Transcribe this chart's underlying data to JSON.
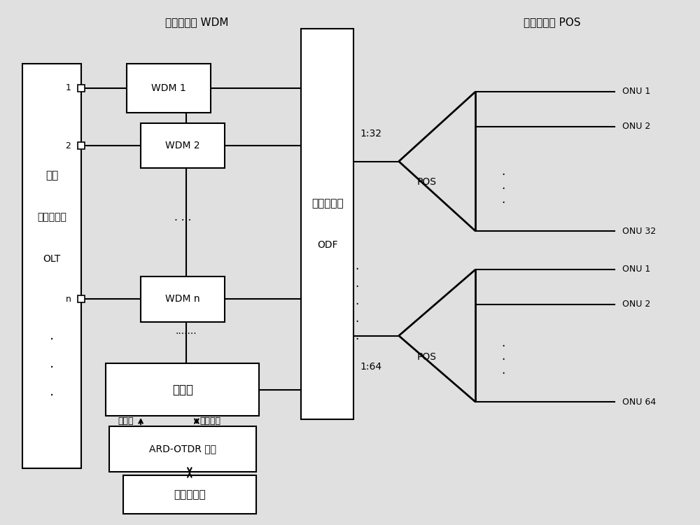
{
  "bg_color": "#e0e0e0",
  "line_color": "#000000",
  "box_color": "#ffffff",
  "title_label": "无源分光器 POS",
  "wdm_label": "波分复用器 WDM",
  "olt_label1": "局端",
  "olt_label2": "光线路终端",
  "olt_label3": "OLT",
  "odf_label1": "光纤配线架",
  "odf_label2": "ODF",
  "wdm1_label": "WDM 1",
  "wdm2_label": "WDM 2",
  "wdmn_label": "WDM n",
  "optical_switch_label": "光开关",
  "control_port_label": "控制口",
  "fiber_port_label": "光纤接口",
  "otdr_label": "ARD-OTDR 设备",
  "test_server_label": "测试服务器",
  "pos1_ratio": "1:32",
  "pos2_ratio": "1:64",
  "pos_label": "POS",
  "onu_labels_top": [
    "ONU 1",
    "ONU 2",
    "ONU 32"
  ],
  "onu_labels_bot": [
    "ONU 1",
    "ONU 2",
    "ONU 64"
  ],
  "port1_label": "1",
  "port2_label": "2",
  "portn_label": "n"
}
